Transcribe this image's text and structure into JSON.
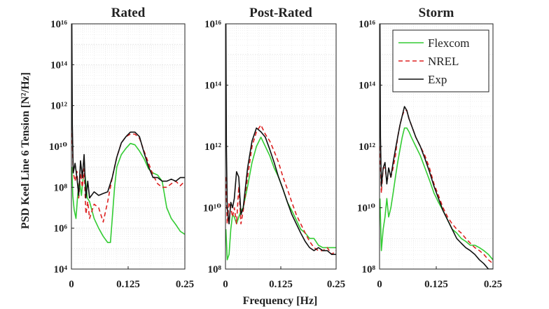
{
  "figure": {
    "ylabel": "PSD Keel Line 6 Tension [N²/Hz]",
    "xlabel": "Frequency [Hz]"
  },
  "chart_data": [
    {
      "type": "line",
      "title": "Rated",
      "xlim": [
        0,
        0.25
      ],
      "xticks": [
        "0",
        "0.125",
        "0.25"
      ],
      "yscale": "log",
      "ylim_exp": [
        4,
        16
      ],
      "ytick_exps": [
        4,
        6,
        8,
        10,
        12,
        14,
        16
      ],
      "grid": true,
      "series": [
        {
          "name": "Flexcom",
          "color": "#33cc33",
          "dash": "solid",
          "x": [
            0.001,
            0.003,
            0.006,
            0.01,
            0.014,
            0.018,
            0.022,
            0.026,
            0.03,
            0.035,
            0.04,
            0.05,
            0.06,
            0.07,
            0.08,
            0.086,
            0.09,
            0.095,
            0.1,
            0.11,
            0.12,
            0.13,
            0.14,
            0.15,
            0.16,
            0.17,
            0.18,
            0.19,
            0.2,
            0.21,
            0.22,
            0.23,
            0.24,
            0.25
          ],
          "y": [
            1000000000.0,
            40000000.0,
            8000000.0,
            3000000.0,
            50000000.0,
            200000000.0,
            40000000.0,
            300000000.0,
            400000000.0,
            30000000.0,
            20000000.0,
            3000000.0,
            1000000.0,
            400000.0,
            200000.0,
            200000.0,
            3000000.0,
            100000000.0,
            1000000000.0,
            4000000000.0,
            8000000000.0,
            14000000000.0,
            12000000000.0,
            6000000000.0,
            2500000000.0,
            800000000.0,
            500000000.0,
            400000000.0,
            200000000.0,
            10000000.0,
            3000000.0,
            1500000.0,
            700000.0,
            500000.0
          ]
        },
        {
          "name": "NREL",
          "color": "#dd2222",
          "dash": "6 4",
          "x": [
            0.001,
            0.004,
            0.008,
            0.012,
            0.016,
            0.02,
            0.024,
            0.028,
            0.032,
            0.036,
            0.04,
            0.05,
            0.06,
            0.07,
            0.08,
            0.09,
            0.1,
            0.11,
            0.12,
            0.13,
            0.14,
            0.15,
            0.16,
            0.17,
            0.18,
            0.19,
            0.2,
            0.21,
            0.22,
            0.23,
            0.24,
            0.25
          ],
          "y": [
            100000000000.0,
            500000000.0,
            200000000.0,
            600000000.0,
            30000000.0,
            500000000.0,
            100000000.0,
            800000000.0,
            5000000.0,
            20000000.0,
            3000000.0,
            15000000.0,
            10000000.0,
            2000000.0,
            20000000.0,
            300000000.0,
            3000000000.0,
            15000000000.0,
            30000000000.0,
            40000000000.0,
            40000000000.0,
            25000000000.0,
            6000000000.0,
            1500000000.0,
            400000000.0,
            150000000.0,
            100000000.0,
            100000000.0,
            150000000.0,
            200000000.0,
            120000000.0,
            200000000.0
          ]
        },
        {
          "name": "Exp",
          "color": "#111111",
          "dash": "solid",
          "x": [
            0.001,
            0.002,
            0.004,
            0.008,
            0.012,
            0.016,
            0.02,
            0.024,
            0.028,
            0.032,
            0.036,
            0.04,
            0.05,
            0.06,
            0.07,
            0.08,
            0.09,
            0.1,
            0.11,
            0.12,
            0.13,
            0.14,
            0.15,
            0.16,
            0.17,
            0.18,
            0.19,
            0.2,
            0.21,
            0.22,
            0.23,
            0.24,
            0.25
          ],
          "y": [
            1e+16,
            100000000000.0,
            500000000.0,
            1500000000.0,
            300000000.0,
            40000000.0,
            2000000000.0,
            300000000.0,
            4000000000.0,
            30000000.0,
            200000000.0,
            30000000.0,
            60000000.0,
            40000000.0,
            50000000.0,
            60000000.0,
            300000000.0,
            3000000000.0,
            15000000000.0,
            30000000000.0,
            50000000000.0,
            50000000000.0,
            30000000000.0,
            5000000000.0,
            1000000000.0,
            300000000.0,
            300000000.0,
            200000000.0,
            200000000.0,
            250000000.0,
            200000000.0,
            300000000.0,
            300000000.0
          ]
        }
      ]
    },
    {
      "type": "line",
      "title": "Post-Rated",
      "xlim": [
        0,
        0.25
      ],
      "xticks": [
        "0",
        "0.125",
        "0.25"
      ],
      "yscale": "log",
      "ylim_exp": [
        8,
        16
      ],
      "ytick_exps": [
        8,
        10,
        12,
        14,
        16
      ],
      "grid": true,
      "series": [
        {
          "name": "Flexcom",
          "color": "#33cc33",
          "dash": "solid",
          "x": [
            0.001,
            0.004,
            0.008,
            0.012,
            0.016,
            0.02,
            0.025,
            0.03,
            0.035,
            0.04,
            0.05,
            0.06,
            0.07,
            0.08,
            0.09,
            0.1,
            0.11,
            0.12,
            0.13,
            0.14,
            0.15,
            0.16,
            0.17,
            0.18,
            0.19,
            0.2,
            0.21,
            0.22,
            0.23,
            0.24,
            0.25
          ],
          "y": [
            2000000000.0,
            200000000.0,
            300000000.0,
            2000000000.0,
            6000000000.0,
            5000000000.0,
            3000000000.0,
            5000000000.0,
            8000000000.0,
            10000000000.0,
            50000000000.0,
            300000000000.0,
            1000000000000.0,
            2000000000000.0,
            1000000000000.0,
            500000000000.0,
            200000000000.0,
            100000000000.0,
            40000000000.0,
            15000000000.0,
            8000000000.0,
            4000000000.0,
            2000000000.0,
            1500000000.0,
            1000000000.0,
            1000000000.0,
            600000000.0,
            500000000.0,
            500000000.0,
            500000000.0,
            500000000.0
          ]
        },
        {
          "name": "NREL",
          "color": "#dd2222",
          "dash": "6 4",
          "x": [
            0.001,
            0.004,
            0.008,
            0.012,
            0.016,
            0.02,
            0.025,
            0.03,
            0.035,
            0.04,
            0.05,
            0.06,
            0.07,
            0.08,
            0.09,
            0.1,
            0.11,
            0.12,
            0.13,
            0.14,
            0.15,
            0.16,
            0.17,
            0.18,
            0.19,
            0.2,
            0.21,
            0.22,
            0.23,
            0.24,
            0.25
          ],
          "y": [
            100000000000.0,
            3000000000.0,
            15000000000.0,
            10000000000.0,
            5000000000.0,
            10000000000.0,
            3000000000.0,
            50000000000.0,
            3000000000.0,
            8000000000.0,
            100000000000.0,
            1000000000000.0,
            3000000000000.0,
            5000000000000.0,
            2500000000000.0,
            1500000000000.0,
            700000000000.0,
            300000000000.0,
            100000000000.0,
            40000000000.0,
            15000000000.0,
            6000000000.0,
            3000000000.0,
            1500000000.0,
            800000000.0,
            500000000.0,
            400000000.0,
            400000000.0,
            500000000.0,
            300000000.0,
            400000000.0
          ]
        },
        {
          "name": "Exp",
          "color": "#111111",
          "dash": "solid",
          "x": [
            0.001,
            0.002,
            0.004,
            0.008,
            0.012,
            0.016,
            0.02,
            0.025,
            0.03,
            0.035,
            0.04,
            0.05,
            0.06,
            0.07,
            0.08,
            0.09,
            0.1,
            0.11,
            0.12,
            0.13,
            0.14,
            0.15,
            0.16,
            0.17,
            0.18,
            0.19,
            0.2,
            0.21,
            0.22,
            0.23,
            0.24,
            0.25
          ],
          "y": [
            1e+16,
            1000000000000.0,
            10000000000.0,
            3000000000.0,
            15000000000.0,
            10000000000.0,
            20000000000.0,
            150000000000.0,
            100000000000.0,
            6000000000.0,
            10000000000.0,
            200000000000.0,
            1500000000000.0,
            4000000000000.0,
            3000000000000.0,
            2000000000000.0,
            800000000000.0,
            300000000000.0,
            100000000000.0,
            40000000000.0,
            15000000000.0,
            6000000000.0,
            3000000000.0,
            1500000000.0,
            800000000.0,
            500000000.0,
            400000000.0,
            500000000.0,
            400000000.0,
            400000000.0,
            300000000.0,
            300000000.0
          ]
        }
      ]
    },
    {
      "type": "line",
      "title": "Storm",
      "xlim": [
        0,
        0.25
      ],
      "xticks": [
        "0",
        "0.125",
        "0.25"
      ],
      "yscale": "log",
      "ylim_exp": [
        8,
        16
      ],
      "ytick_exps": [
        8,
        10,
        12,
        14,
        16
      ],
      "grid": true,
      "legend": {
        "location": "top-right",
        "entries": [
          "Flexcom",
          "NREL",
          "Exp"
        ]
      },
      "series": [
        {
          "name": "Flexcom",
          "color": "#33cc33",
          "dash": "solid",
          "x": [
            0.001,
            0.004,
            0.008,
            0.012,
            0.016,
            0.02,
            0.025,
            0.03,
            0.035,
            0.04,
            0.045,
            0.05,
            0.055,
            0.06,
            0.065,
            0.07,
            0.08,
            0.09,
            0.1,
            0.11,
            0.12,
            0.13,
            0.14,
            0.15,
            0.16,
            0.17,
            0.18,
            0.19,
            0.2,
            0.21,
            0.22,
            0.23,
            0.24,
            0.25
          ],
          "y": [
            20000000000.0,
            400000000.0,
            2000000000.0,
            5000000000.0,
            20000000000.0,
            5000000000.0,
            10000000000.0,
            30000000000.0,
            100000000000.0,
            300000000000.0,
            800000000000.0,
            2000000000000.0,
            4000000000000.0,
            4000000000000.0,
            3000000000000.0,
            2000000000000.0,
            1000000000000.0,
            500000000000.0,
            200000000000.0,
            80000000000.0,
            30000000000.0,
            15000000000.0,
            8000000000.0,
            4000000000.0,
            2000000000.0,
            1500000000.0,
            1000000000.0,
            800000000.0,
            600000000.0,
            600000000.0,
            500000000.0,
            400000000.0,
            300000000.0,
            200000000.0
          ]
        },
        {
          "name": "NREL",
          "color": "#dd2222",
          "dash": "6 4",
          "x": [
            0.001,
            0.004,
            0.008,
            0.012,
            0.016,
            0.02,
            0.025,
            0.03,
            0.035,
            0.04,
            0.045,
            0.05,
            0.055,
            0.06,
            0.065,
            0.07,
            0.08,
            0.09,
            0.1,
            0.11,
            0.12,
            0.13,
            0.14,
            0.15,
            0.16,
            0.17,
            0.18,
            0.19,
            0.2,
            0.21,
            0.22,
            0.23,
            0.24,
            0.25
          ],
          "y": [
            1000000000000.0,
            30000000000.0,
            200000000000.0,
            200000000000.0,
            80000000000.0,
            100000000000.0,
            100000000000.0,
            200000000000.0,
            500000000000.0,
            2000000000000.0,
            5000000000000.0,
            10000000000000.0,
            15000000000000.0,
            15000000000000.0,
            8000000000000.0,
            5000000000000.0,
            2000000000000.0,
            1000000000000.0,
            500000000000.0,
            200000000000.0,
            60000000000.0,
            25000000000.0,
            10000000000.0,
            5000000000.0,
            3000000000.0,
            2000000000.0,
            1500000000.0,
            1000000000.0,
            700000000.0,
            500000000.0,
            400000000.0,
            300000000.0,
            200000000.0,
            150000000.0
          ]
        },
        {
          "name": "Exp",
          "color": "#111111",
          "dash": "solid",
          "x": [
            0.001,
            0.002,
            0.004,
            0.008,
            0.012,
            0.016,
            0.02,
            0.025,
            0.03,
            0.035,
            0.04,
            0.045,
            0.05,
            0.055,
            0.06,
            0.065,
            0.07,
            0.08,
            0.09,
            0.1,
            0.11,
            0.12,
            0.13,
            0.14,
            0.15,
            0.16,
            0.17,
            0.18,
            0.19,
            0.2,
            0.21,
            0.22,
            0.23,
            0.24,
            0.25
          ],
          "y": [
            1e+16,
            2000000000000.0,
            50000000000.0,
            200000000000.0,
            300000000000.0,
            60000000000.0,
            200000000000.0,
            100000000000.0,
            300000000000.0,
            800000000000.0,
            2000000000000.0,
            5000000000000.0,
            10000000000000.0,
            20000000000000.0,
            15000000000000.0,
            8000000000000.0,
            5000000000000.0,
            2000000000000.0,
            1000000000000.0,
            400000000000.0,
            150000000000.0,
            50000000000.0,
            20000000000.0,
            8000000000.0,
            4000000000.0,
            2000000000.0,
            1000000000.0,
            700000000.0,
            500000000.0,
            400000000.0,
            300000000.0,
            200000000.0,
            150000000.0,
            100000000.0,
            100000000.0
          ]
        }
      ]
    }
  ]
}
